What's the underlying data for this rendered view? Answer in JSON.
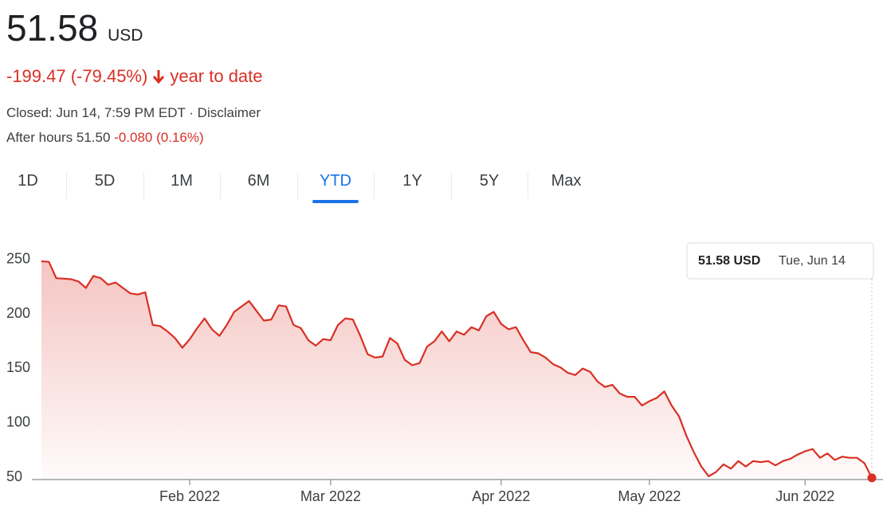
{
  "quote": {
    "price": "51.58",
    "currency": "USD",
    "change": "-199.47 (-79.45%)",
    "period": "year to date",
    "closed": "Closed: Jun 14, 7:59 PM EDT · Disclaimer",
    "after_hours": "After hours 51.50",
    "after_hours_change": "-0.080 (0.16%)"
  },
  "ranges": [
    "1D",
    "5D",
    "1M",
    "6M",
    "YTD",
    "1Y",
    "5Y",
    "Max"
  ],
  "chart_data": {
    "type": "line",
    "color": "#d93025",
    "tooltip": {
      "price": "51.58 USD",
      "date": "Tue, Jun 14"
    },
    "categories": [
      null,
      null,
      null,
      null,
      null,
      null,
      null,
      null,
      null,
      null,
      null,
      null,
      null,
      null,
      null,
      null,
      null,
      null,
      null,
      null,
      "Feb 2022",
      null,
      null,
      null,
      null,
      null,
      null,
      null,
      null,
      null,
      null,
      null,
      null,
      null,
      null,
      null,
      null,
      null,
      null,
      "Mar 2022",
      null,
      null,
      null,
      null,
      null,
      null,
      null,
      null,
      null,
      null,
      null,
      null,
      null,
      null,
      null,
      null,
      null,
      null,
      null,
      null,
      null,
      null,
      "Apr 2022",
      null,
      null,
      null,
      null,
      null,
      null,
      null,
      null,
      null,
      null,
      null,
      null,
      null,
      null,
      null,
      null,
      null,
      null,
      null,
      "May 2022",
      null,
      null,
      null,
      null,
      null,
      null,
      null,
      null,
      null,
      null,
      null,
      null,
      null,
      null,
      null,
      null,
      null,
      null,
      null,
      null,
      "Jun 2022",
      null,
      null,
      null,
      null,
      null,
      null,
      null,
      null,
      null
    ],
    "values": [
      250.5,
      250,
      235,
      234.5,
      234,
      232,
      226,
      237,
      235,
      229,
      231,
      226,
      221,
      220,
      222,
      192,
      191,
      186,
      180,
      171,
      179,
      189,
      198,
      188,
      182,
      192,
      204,
      209,
      214,
      205,
      196,
      197,
      210,
      209,
      192,
      189,
      178,
      173,
      179,
      178,
      192,
      198,
      197,
      182,
      165,
      162,
      163,
      180,
      175,
      160,
      155,
      157,
      172,
      177,
      186,
      177,
      186,
      183,
      190,
      187,
      200,
      204,
      193,
      188,
      190,
      178,
      167,
      166,
      162,
      156,
      153,
      148,
      146,
      152,
      149,
      140,
      135,
      137,
      129,
      126,
      126,
      118,
      122,
      125,
      131,
      118,
      108,
      90,
      75,
      62,
      53,
      57,
      64,
      60,
      67,
      62,
      67,
      66,
      67,
      63,
      67,
      69,
      73,
      76,
      78,
      70,
      74,
      68,
      71,
      70,
      70,
      65,
      51.58
    ],
    "ylim": [
      50,
      260
    ],
    "yticks": [
      50,
      100,
      150,
      200,
      250
    ],
    "grid": false
  }
}
